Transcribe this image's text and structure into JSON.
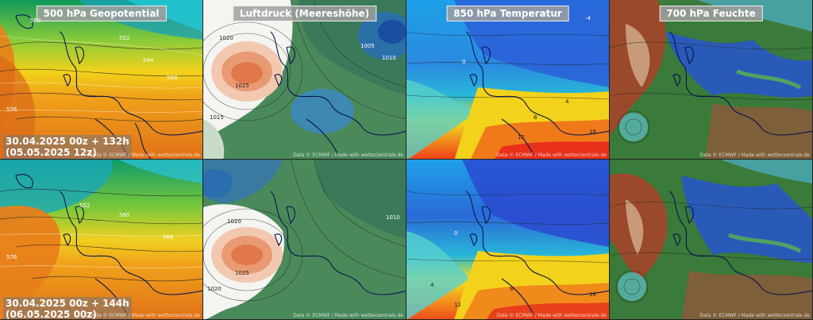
{
  "titles": {
    "geopotential": "500 hPa Geopotential",
    "pressure": "Luftdruck (Meereshöhe)",
    "temperature": "850 hPa Temperatur",
    "humidity": "700 hPa Feuchte"
  },
  "runs": [
    {
      "line1": "30.04.2025 00z + 132h",
      "line2": "(05.05.2025 12z)"
    },
    {
      "line1": "30.04.2025 00z + 144h",
      "line2": "(06.05.2025 00z)"
    }
  ],
  "credit": "Data © ECMWF / Made with wetterzentrale.de",
  "contour_labels": {
    "geopotential": [
      "560",
      "552",
      "544",
      "568",
      "576"
    ],
    "pressure": [
      "1025",
      "1020",
      "1015",
      "1010",
      "1005"
    ],
    "temperature": [
      "0",
      "4",
      "8",
      "12",
      "16",
      "-4"
    ]
  },
  "colors": {
    "geo_cold": "#22b8c8",
    "geo_warm": "#e8801a",
    "pressure_high": "#e0784a",
    "pressure_low": "#2a6eb0",
    "temp_cold": "#2a5fd8",
    "temp_warm": "#f03a1a",
    "humidity_dry": "#9a4a2a",
    "humidity_moist": "#2a5ab8"
  }
}
